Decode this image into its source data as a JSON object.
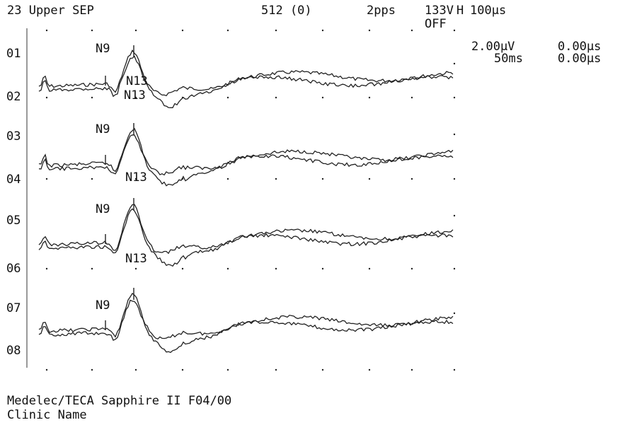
{
  "header": {
    "test": "23 Upper SEP",
    "averages": "512 (0)",
    "rate": "2pps",
    "stim": "133V",
    "filter_label": "H",
    "filter_value": "100µs",
    "off": "OFF"
  },
  "settings": {
    "sensitivity": "2.00µV",
    "sweep": "50ms",
    "cursor1": "0.00µs",
    "cursor2": "0.00µs"
  },
  "footer": {
    "device": "Medelec/TECA Sapphire II F04/00",
    "clinic": "Clinic Name"
  },
  "chart_data": {
    "type": "line",
    "title": "23 Upper SEP",
    "x_range_ms": [
      0,
      50
    ],
    "grid": "dotted",
    "channels": [
      "01",
      "02",
      "03",
      "04",
      "05",
      "06",
      "07",
      "08"
    ],
    "traces": [
      {
        "pair": [
          "01",
          "02"
        ],
        "markers": [
          "N9",
          "N13",
          "N13"
        ]
      },
      {
        "pair": [
          "03",
          "04"
        ],
        "markers": [
          "N9",
          "N13"
        ]
      },
      {
        "pair": [
          "05",
          "06"
        ],
        "markers": [
          "N9",
          "N13"
        ]
      },
      {
        "pair": [
          "07",
          "08"
        ],
        "markers": [
          "N9"
        ]
      }
    ]
  }
}
